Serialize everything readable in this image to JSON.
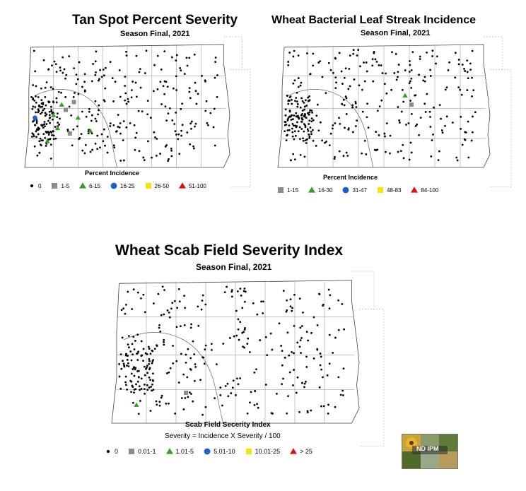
{
  "maps": [
    {
      "id": "tan-spot",
      "title": "Tan Spot Percent Severity",
      "subtitle": "Season Final, 2021",
      "legend_title": "Percent Incidence",
      "legend_note": "",
      "legend": [
        {
          "label": "0",
          "symbol": "dot",
          "color": "#000000"
        },
        {
          "label": "1-5",
          "symbol": "square",
          "color": "#8c8c8c"
        },
        {
          "label": "6-15",
          "symbol": "triangle",
          "color": "#3a9a2a"
        },
        {
          "label": "16-25",
          "symbol": "circle",
          "color": "#1a5fd0"
        },
        {
          "label": "26-50",
          "symbol": "square",
          "color": "#f5e60a"
        },
        {
          "label": "51-100",
          "symbol": "triangle",
          "color": "#e01010"
        }
      ]
    },
    {
      "id": "bls",
      "title": "Wheat Bacterial Leaf Streak Incidence",
      "subtitle": "Season Final, 2021",
      "legend_title": "Percent Incidence",
      "legend_note": "",
      "legend": [
        {
          "label": "1-15",
          "symbol": "square",
          "color": "#8c8c8c"
        },
        {
          "label": "16-30",
          "symbol": "triangle",
          "color": "#3a9a2a"
        },
        {
          "label": "31-47",
          "symbol": "circle",
          "color": "#1a5fd0"
        },
        {
          "label": "48-83",
          "symbol": "square",
          "color": "#f5e60a"
        },
        {
          "label": "84-100",
          "symbol": "triangle",
          "color": "#e01010"
        }
      ]
    },
    {
      "id": "scab",
      "title": "Wheat Scab Field Severity Index",
      "subtitle": "Season Final, 2021",
      "legend_title": "Scab Field Secerity Index",
      "legend_note": "Severity = Incidence X Severity / 100",
      "legend": [
        {
          "label": "0",
          "symbol": "dot",
          "color": "#000000"
        },
        {
          "label": "0.01-1",
          "symbol": "square",
          "color": "#8c8c8c"
        },
        {
          "label": "1.01-5",
          "symbol": "triangle",
          "color": "#3a9a2a"
        },
        {
          "label": "5.01-10",
          "symbol": "circle",
          "color": "#1a5fd0"
        },
        {
          "label": "10.01-25",
          "symbol": "square",
          "color": "#f5e60a"
        },
        {
          "label": "> 25",
          "symbol": "triangle",
          "color": "#e01010"
        }
      ]
    }
  ],
  "logo": {
    "text": "ND IPM"
  }
}
